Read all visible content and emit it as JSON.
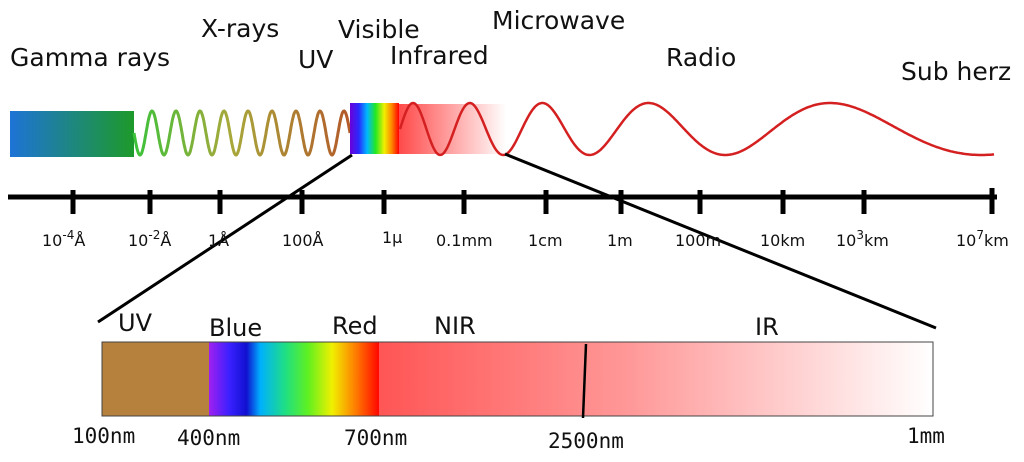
{
  "bands": [
    {
      "id": "gamma",
      "label": "Gamma rays"
    },
    {
      "id": "xray",
      "label": "X-rays"
    },
    {
      "id": "uv",
      "label": "UV"
    },
    {
      "id": "visible",
      "label": "Visible"
    },
    {
      "id": "infrared",
      "label": "Infrared"
    },
    {
      "id": "microwave",
      "label": "Microwave"
    },
    {
      "id": "radio",
      "label": "Radio"
    },
    {
      "id": "subhertz",
      "label": "Sub herz"
    }
  ],
  "scale_ticks": [
    {
      "base": "10",
      "sup": "-4",
      "unit": "Å"
    },
    {
      "base": "10",
      "sup": "-2",
      "unit": "Å"
    },
    {
      "base": "1Å",
      "sup": "",
      "unit": ""
    },
    {
      "base": "100Å",
      "sup": "",
      "unit": ""
    },
    {
      "base": "1μ",
      "sup": "",
      "unit": ""
    },
    {
      "base": "0.1mm",
      "sup": "",
      "unit": ""
    },
    {
      "base": "1cm",
      "sup": "",
      "unit": ""
    },
    {
      "base": "1m",
      "sup": "",
      "unit": ""
    },
    {
      "base": "100m",
      "sup": "",
      "unit": ""
    },
    {
      "base": "10km",
      "sup": "",
      "unit": ""
    },
    {
      "base": "10",
      "sup": "3",
      "unit": "km"
    },
    {
      "base": "10",
      "sup": "7",
      "unit": "km"
    }
  ],
  "detail_regions": [
    {
      "id": "uv",
      "label": "UV"
    },
    {
      "id": "blue",
      "label": "Blue"
    },
    {
      "id": "red",
      "label": "Red"
    },
    {
      "id": "nir",
      "label": "NIR"
    },
    {
      "id": "ir",
      "label": "IR"
    }
  ],
  "detail_ticks": [
    "100nm",
    "400nm",
    "700nm",
    "2500nm",
    "1mm"
  ],
  "colors": {
    "axis": "#000000",
    "radio_wave": "#d42020",
    "uv_band": "#b5813c",
    "ir_red": "#ff4444"
  }
}
